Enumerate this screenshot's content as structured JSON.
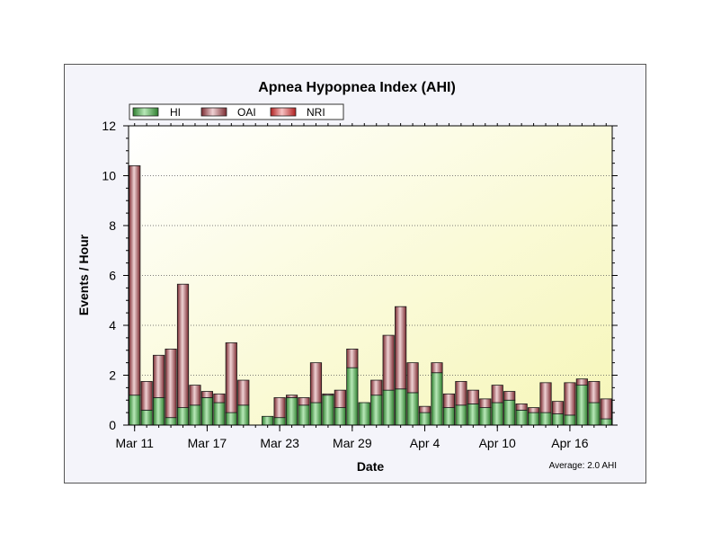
{
  "chart_data": {
    "type": "bar",
    "stacked": true,
    "title": "Apnea Hypopnea Index (AHI)",
    "xlabel": "Date",
    "ylabel": "Events / Hour",
    "ylim": [
      0,
      12
    ],
    "yticks": [
      "0",
      "2",
      "4",
      "6",
      "8",
      "10",
      "12"
    ],
    "grid": true,
    "legend_position": "top-left",
    "note": "Average: 2.0 AHI",
    "x": [
      "Mar 11",
      "Mar 12",
      "Mar 13",
      "Mar 14",
      "Mar 15",
      "Mar 16",
      "Mar 17",
      "Mar 18",
      "Mar 19",
      "Mar 20",
      "Mar 21",
      "Mar 22",
      "Mar 23",
      "Mar 24",
      "Mar 25",
      "Mar 26",
      "Mar 27",
      "Mar 28",
      "Mar 29",
      "Mar 30",
      "Mar 31",
      "Apr 1",
      "Apr 2",
      "Apr 3",
      "Apr 4",
      "Apr 5",
      "Apr 6",
      "Apr 7",
      "Apr 8",
      "Apr 9",
      "Apr 10",
      "Apr 11",
      "Apr 12",
      "Apr 13",
      "Apr 14",
      "Apr 15",
      "Apr 16",
      "Apr 17",
      "Apr 18",
      "Apr 19"
    ],
    "xtick_labels": [
      {
        "index": 0,
        "label": "Mar 11"
      },
      {
        "index": 6,
        "label": "Mar 17"
      },
      {
        "index": 12,
        "label": "Mar 23"
      },
      {
        "index": 18,
        "label": "Mar 29"
      },
      {
        "index": 24,
        "label": "Apr 4"
      },
      {
        "index": 30,
        "label": "Apr 10"
      },
      {
        "index": 36,
        "label": "Apr 16"
      }
    ],
    "series": [
      {
        "name": "HI",
        "color": "#3c9a3c",
        "values": [
          1.2,
          0.6,
          1.1,
          0.3,
          0.7,
          0.8,
          1.1,
          0.9,
          0.5,
          0.8,
          null,
          0.35,
          0.3,
          1.1,
          0.8,
          0.9,
          1.2,
          0.7,
          2.3,
          0.9,
          1.2,
          1.4,
          1.45,
          1.3,
          0.5,
          2.1,
          0.7,
          0.8,
          0.85,
          0.7,
          0.9,
          1.0,
          0.6,
          0.5,
          0.5,
          0.45,
          0.4,
          1.6,
          0.9,
          0.25
        ]
      },
      {
        "name": "OAI",
        "color": "#8a3a40",
        "values": [
          9.2,
          1.15,
          1.7,
          2.75,
          4.95,
          0.8,
          0.25,
          0.35,
          2.8,
          1.0,
          null,
          0.0,
          0.8,
          0.1,
          0.3,
          1.6,
          0.05,
          0.7,
          0.75,
          0.0,
          0.6,
          2.2,
          3.3,
          1.2,
          0.25,
          0.4,
          0.55,
          0.95,
          0.55,
          0.35,
          0.7,
          0.35,
          0.25,
          0.2,
          1.2,
          0.5,
          1.3,
          0.25,
          0.85,
          0.8
        ]
      },
      {
        "name": "NRI",
        "color": "#cc3333",
        "values": [
          0,
          0,
          0,
          0,
          0,
          0,
          0,
          0,
          0,
          0,
          null,
          0,
          0,
          0,
          0,
          0,
          0,
          0,
          0,
          0,
          0,
          0,
          0,
          0,
          0,
          0,
          0,
          0,
          0,
          0,
          0,
          0,
          0,
          0,
          0,
          0,
          0,
          0,
          0,
          0
        ]
      }
    ]
  }
}
